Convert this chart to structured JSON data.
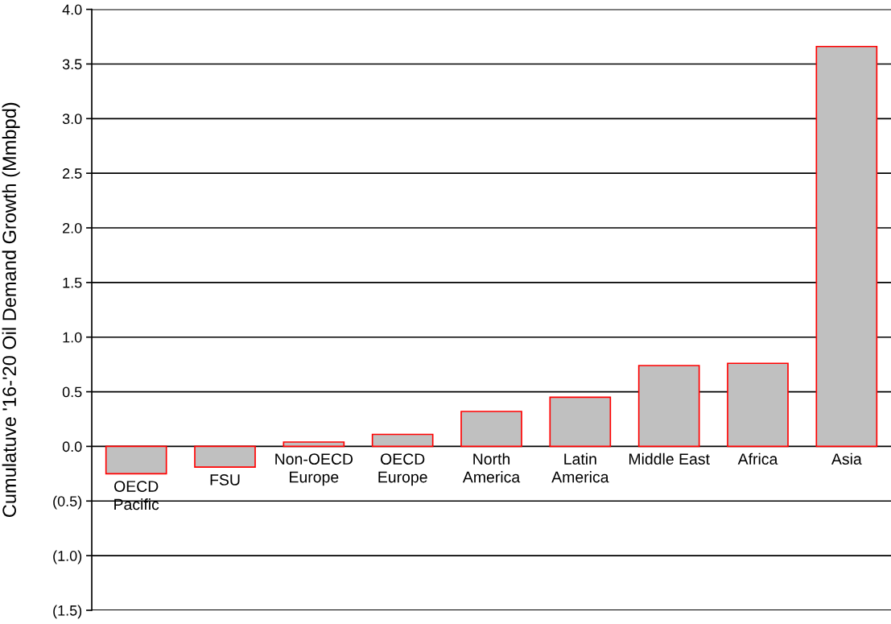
{
  "chart_data": {
    "type": "bar",
    "ylabel": "Cumulatuve '16-'20 Oil Demand Growth (Mmbpd)",
    "categories": [
      "OECD\nPacific",
      "FSU",
      "Non-OECD\nEurope",
      "OECD\nEurope",
      "North\nAmerica",
      "Latin\nAmerica",
      "Middle East",
      "Africa",
      "Asia"
    ],
    "values": [
      -0.25,
      -0.19,
      0.04,
      0.11,
      0.32,
      0.45,
      0.74,
      0.76,
      3.66
    ],
    "color": "#c0c0c0",
    "ylim": [
      -1.5,
      4.0
    ],
    "yticks": [
      {
        "value": -1.5,
        "label": "(1.5)"
      },
      {
        "value": -1.0,
        "label": "(1.0)"
      },
      {
        "value": -0.5,
        "label": "(0.5)"
      },
      {
        "value": 0.0,
        "label": "0.0"
      },
      {
        "value": 0.5,
        "label": "0.5"
      },
      {
        "value": 1.0,
        "label": "1.0"
      },
      {
        "value": 1.5,
        "label": "1.5"
      },
      {
        "value": 2.0,
        "label": "2.0"
      },
      {
        "value": 2.5,
        "label": "2.5"
      },
      {
        "value": 3.0,
        "label": "3.0"
      },
      {
        "value": 3.5,
        "label": "3.5"
      },
      {
        "value": 4.0,
        "label": "4.0"
      }
    ],
    "grid": "y"
  }
}
